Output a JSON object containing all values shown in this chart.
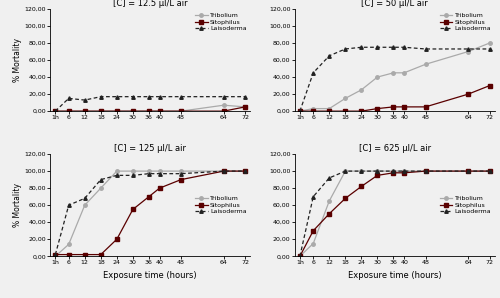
{
  "x_labels": [
    "1h",
    "6",
    "12",
    "18",
    "24",
    "30",
    "36",
    "40",
    "48",
    "64",
    "72"
  ],
  "x_values": [
    1,
    6,
    12,
    18,
    24,
    30,
    36,
    40,
    48,
    64,
    72
  ],
  "panels": [
    {
      "title": "[C] = 12.5 μl/L air",
      "tribolium": [
        0,
        0,
        0,
        0,
        0,
        0,
        0,
        0,
        0,
        7,
        5
      ],
      "sitophilus": [
        0,
        0,
        0,
        0,
        0,
        0,
        0,
        0,
        0,
        0,
        5
      ],
      "laisoderma": [
        0,
        15,
        13,
        17,
        17,
        17,
        17,
        17,
        17,
        17,
        17
      ],
      "ylim": [
        0,
        120
      ],
      "yticks": [
        0,
        20,
        40,
        60,
        80,
        100,
        120
      ],
      "legend_loc": "upper right"
    },
    {
      "title": "[C] = 50 μl/L air",
      "tribolium": [
        0,
        3,
        3,
        15,
        25,
        40,
        45,
        45,
        55,
        70,
        80
      ],
      "sitophilus": [
        0,
        0,
        0,
        0,
        0,
        3,
        5,
        5,
        5,
        20,
        30
      ],
      "laisoderma": [
        0,
        45,
        65,
        73,
        75,
        75,
        75,
        75,
        73,
        73,
        73
      ],
      "ylim": [
        0,
        120
      ],
      "yticks": [
        0,
        20,
        40,
        60,
        80,
        100,
        120
      ],
      "legend_loc": "upper right"
    },
    {
      "title": "[C] = 125 μl/L air",
      "tribolium": [
        0,
        14,
        60,
        80,
        100,
        100,
        100,
        100,
        100,
        100,
        100
      ],
      "sitophilus": [
        2,
        2,
        2,
        2,
        20,
        55,
        70,
        80,
        90,
        100,
        100
      ],
      "laisoderma": [
        2,
        60,
        68,
        90,
        95,
        95,
        97,
        97,
        97,
        100,
        100
      ],
      "ylim": [
        0,
        120
      ],
      "yticks": [
        0,
        20,
        40,
        60,
        80,
        100,
        120
      ],
      "legend_loc": "center right"
    },
    {
      "title": "[C] = 625 μl/L air",
      "tribolium": [
        0,
        15,
        65,
        100,
        100,
        100,
        100,
        100,
        100,
        100,
        100
      ],
      "sitophilus": [
        0,
        30,
        50,
        68,
        82,
        95,
        98,
        98,
        100,
        100,
        100
      ],
      "laisoderma": [
        0,
        70,
        92,
        100,
        100,
        100,
        100,
        100,
        100,
        100,
        100
      ],
      "ylim": [
        0,
        120
      ],
      "yticks": [
        0,
        20,
        40,
        60,
        80,
        100,
        120
      ],
      "legend_loc": "center right"
    }
  ],
  "tribolium_color": "#aaaaaa",
  "sitophilus_color": "#5a0000",
  "laisoderma_color": "#222222",
  "xlabel": "Exposure time (hours)",
  "ylabel": "% Mortality",
  "fig_bg": "#f0f0f0"
}
